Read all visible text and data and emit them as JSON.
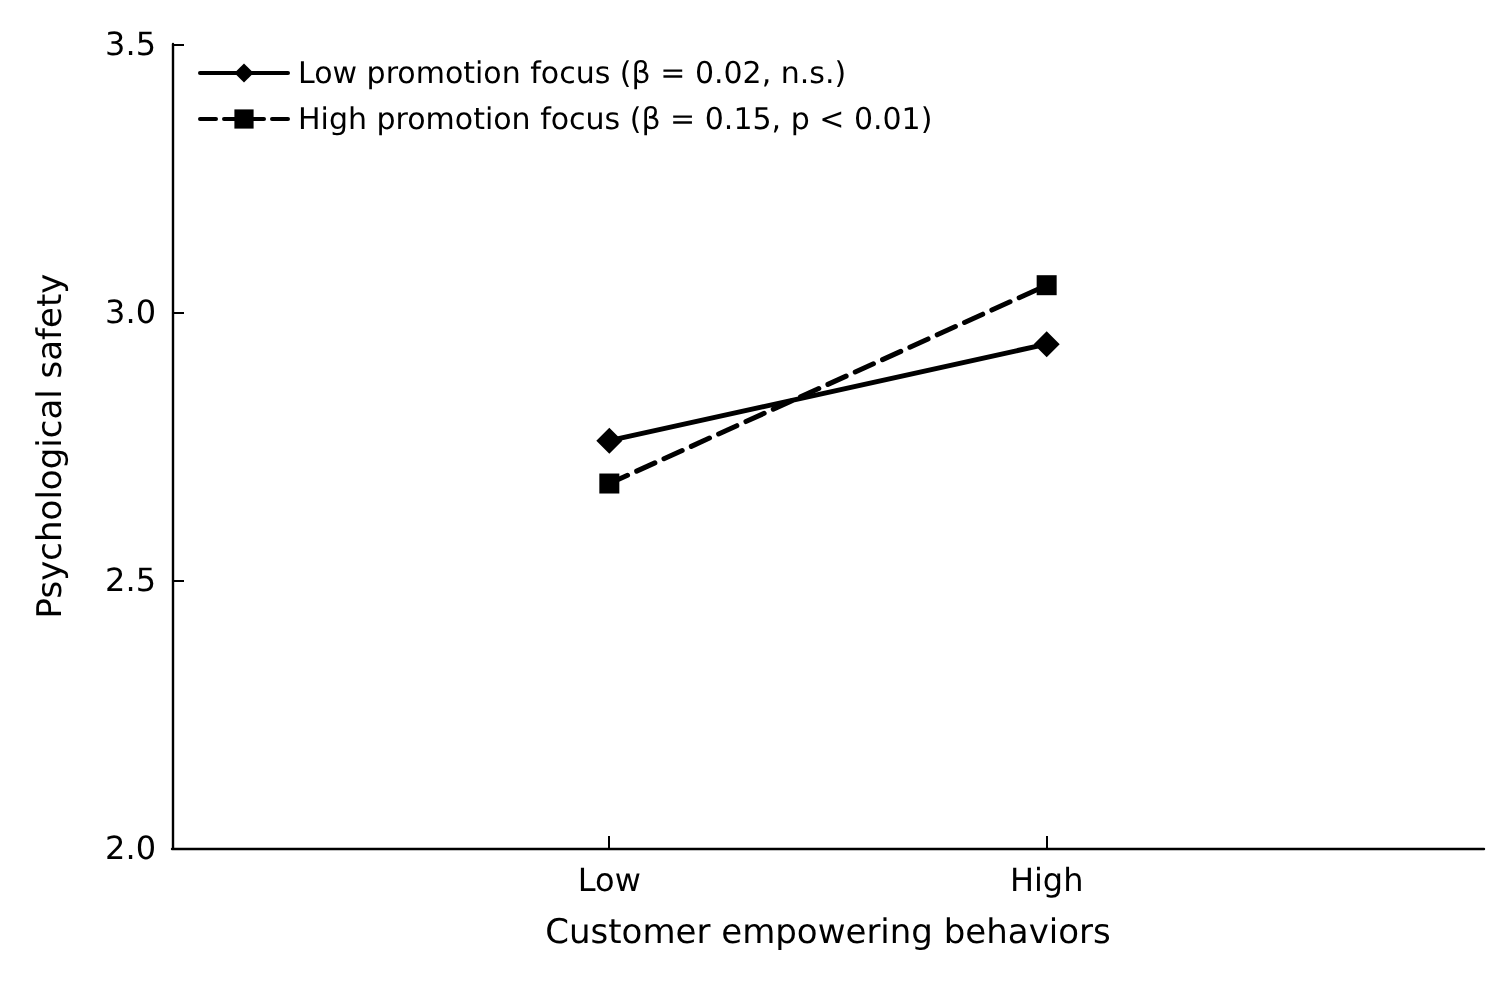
{
  "chart_data": {
    "type": "line",
    "xlabel": "Customer empowering behaviors",
    "ylabel": "Psychological safety",
    "categories": [
      "Low",
      "High"
    ],
    "ylim": [
      2.0,
      3.5
    ],
    "yticks": [
      {
        "value": 2.0,
        "label": "2.0"
      },
      {
        "value": 2.5,
        "label": "2.5"
      },
      {
        "value": 3.0,
        "label": "3.0"
      },
      {
        "value": 3.5,
        "label": "3.5"
      }
    ],
    "grid": false,
    "legend": "top left",
    "series": [
      {
        "name": "Low promotion focus (β = 0.02, n.s.)",
        "color": "#000000",
        "values": [
          2.76,
          2.94
        ],
        "marker": "diamond",
        "line_style": "solid"
      },
      {
        "name": "High promotion focus (β = 0.15, p < 0.01)",
        "color": "#000000",
        "values": [
          2.68,
          3.05
        ],
        "marker": "square",
        "line_style": "dashed"
      }
    ]
  }
}
